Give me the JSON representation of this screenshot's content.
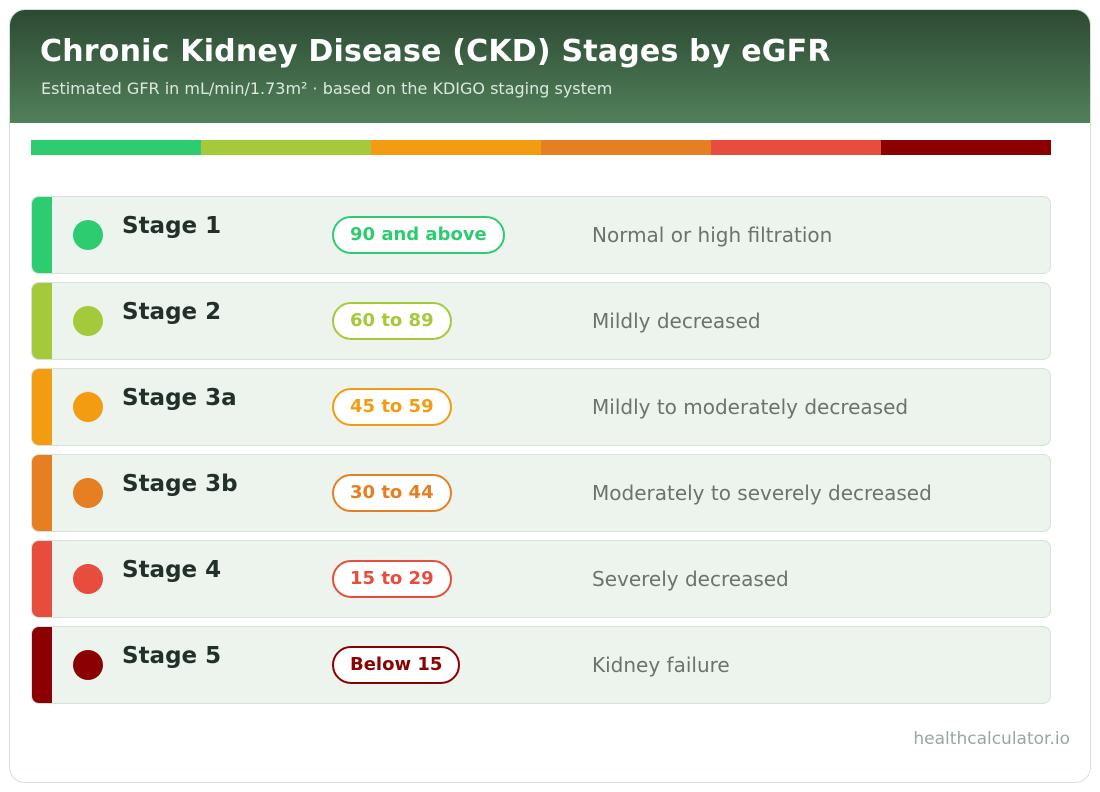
{
  "header": {
    "title": "Chronic Kidney Disease (CKD) Stages by eGFR",
    "subtitle": "Estimated GFR in mL/min/1.73m²  ·  based on the KDIGO staging system"
  },
  "colors": {
    "header_dark": "#2c4a33",
    "header_light": "#52805a",
    "row_background": "#edf3ed"
  },
  "stages": [
    {
      "name": "Stage 1",
      "range": "90 and above",
      "description": "Normal or high filtration",
      "color": "#2ecc71"
    },
    {
      "name": "Stage 2",
      "range": "60 to 89",
      "description": "Mildly decreased",
      "color": "#a4c93a"
    },
    {
      "name": "Stage 3a",
      "range": "45 to 59",
      "description": "Mildly to moderately decreased",
      "color": "#f39c12"
    },
    {
      "name": "Stage 3b",
      "range": "30 to 44",
      "description": "Moderately to severely decreased",
      "color": "#e67e22"
    },
    {
      "name": "Stage 4",
      "range": "15 to 29",
      "description": "Severely decreased",
      "color": "#e74c3c"
    },
    {
      "name": "Stage 5",
      "range": "Below 15",
      "description": "Kidney failure",
      "color": "#8b0000"
    }
  ],
  "footer": {
    "source": "healthcalculator.io"
  }
}
